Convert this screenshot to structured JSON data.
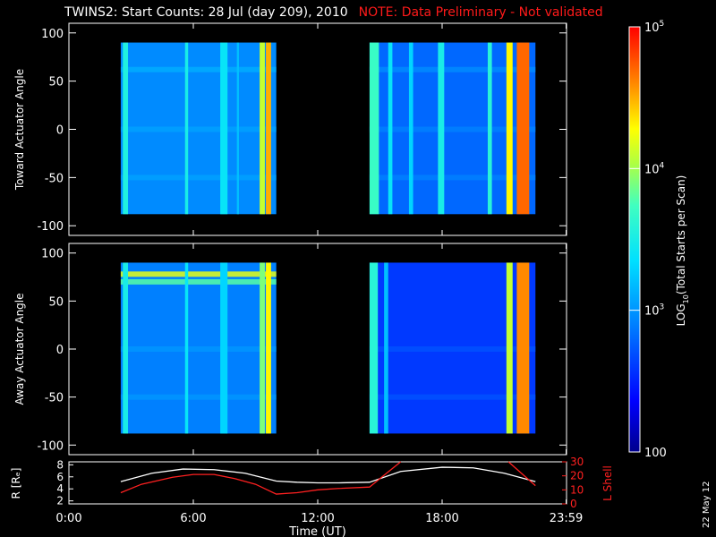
{
  "title": {
    "main": "TWINS2: Start Counts: 28 Jul (day 209), 2010",
    "note": "NOTE: Data Preliminary - Not validated"
  },
  "side_label": "22 May 12",
  "colors": {
    "background": "#000000",
    "axes": "#ffffff",
    "note": "#ff1a1a",
    "r_line": "#ffffff",
    "lshell_line": "#ff2020"
  },
  "chart_data": [
    {
      "type": "heatmap",
      "panel": "toward",
      "ylabel": "Toward Actuator Angle",
      "ylim": [
        -110,
        110
      ],
      "yticks": [
        100,
        50,
        0,
        -50,
        -100
      ],
      "xlim_hours": [
        0,
        24
      ],
      "data_extent": {
        "y": [
          -88,
          90
        ]
      },
      "segments": [
        {
          "x_start_hours": 2.5,
          "x_end_hours": 10.0,
          "background_level": 2.95,
          "stripes": [
            {
              "x_hours": 2.6,
              "width": 0.25,
              "level": 3.55
            },
            {
              "x_hours": 5.6,
              "width": 0.15,
              "level": 3.5
            },
            {
              "x_hours": 7.3,
              "width": 0.35,
              "level": 3.4
            },
            {
              "x_hours": 8.1,
              "width": 0.1,
              "level": 3.2
            },
            {
              "x_hours": 9.2,
              "width": 0.25,
              "level": 4.1
            },
            {
              "x_hours": 9.5,
              "width": 0.25,
              "level": 4.5
            }
          ]
        },
        {
          "x_start_hours": 14.5,
          "x_end_hours": 22.5,
          "background_level": 2.8,
          "stripes": [
            {
              "x_hours": 14.5,
              "width": 0.45,
              "level": 3.7
            },
            {
              "x_hours": 15.4,
              "width": 0.2,
              "level": 3.4
            },
            {
              "x_hours": 16.4,
              "width": 0.2,
              "level": 3.3
            },
            {
              "x_hours": 17.8,
              "width": 0.3,
              "level": 3.5
            },
            {
              "x_hours": 20.2,
              "width": 0.2,
              "level": 3.6
            },
            {
              "x_hours": 21.1,
              "width": 0.3,
              "level": 4.3
            },
            {
              "x_hours": 21.6,
              "width": 0.6,
              "level": 4.7
            }
          ]
        }
      ],
      "bands": [
        {
          "y": 62,
          "level_delta": 0.15
        },
        {
          "y": 0,
          "level_delta": 0.1
        },
        {
          "y": -50,
          "level_delta": 0.1
        }
      ]
    },
    {
      "type": "heatmap",
      "panel": "away",
      "ylabel": "Away Actuator Angle",
      "ylim": [
        -110,
        110
      ],
      "yticks": [
        100,
        50,
        0,
        -50,
        -100
      ],
      "xlim_hours": [
        0,
        24
      ],
      "data_extent": {
        "y": [
          -88,
          90
        ]
      },
      "segments": [
        {
          "x_start_hours": 2.5,
          "x_end_hours": 10.0,
          "background_level": 2.9,
          "stripes": [
            {
              "x_hours": 2.6,
              "width": 0.25,
              "level": 3.5
            },
            {
              "x_hours": 5.6,
              "width": 0.15,
              "level": 3.4
            },
            {
              "x_hours": 7.3,
              "width": 0.35,
              "level": 3.3
            },
            {
              "x_hours": 9.2,
              "width": 0.25,
              "level": 3.9
            },
            {
              "x_hours": 9.5,
              "width": 0.25,
              "level": 4.3
            }
          ]
        },
        {
          "x_start_hours": 14.5,
          "x_end_hours": 22.5,
          "background_level": 2.6,
          "stripes": [
            {
              "x_hours": 14.5,
              "width": 0.4,
              "level": 3.6
            },
            {
              "x_hours": 15.2,
              "width": 0.2,
              "level": 3.2
            },
            {
              "x_hours": 21.1,
              "width": 0.3,
              "level": 4.1
            },
            {
              "x_hours": 21.6,
              "width": 0.6,
              "level": 4.6
            }
          ]
        }
      ],
      "bands": [
        {
          "y": 78,
          "level_delta": 1.3,
          "x_range_hours": [
            2.5,
            10.0
          ]
        },
        {
          "y": 70,
          "level_delta": 0.9,
          "x_range_hours": [
            2.5,
            10.0
          ]
        },
        {
          "y": 0,
          "level_delta": 0.1
        },
        {
          "y": -50,
          "level_delta": 0.1
        }
      ]
    },
    {
      "type": "line",
      "panel": "orbit",
      "ylabel": "R [Rₑ]",
      "ylabel_right": "L Shell",
      "xlabel": "Time (UT)",
      "xtick_labels": [
        "0:00",
        "6:00",
        "12:00",
        "18:00",
        "23:59"
      ],
      "xtick_hours": [
        0,
        6,
        12,
        18,
        23.98
      ],
      "ylim_left": [
        1.5,
        8.5
      ],
      "yticks_left": [
        2,
        4,
        6,
        8
      ],
      "ylim_right": [
        0,
        30
      ],
      "yticks_right": [
        0,
        10,
        20,
        30
      ],
      "series": [
        {
          "axis": "left",
          "color": "#ffffff",
          "x": [
            2.5,
            4,
            5.5,
            7,
            8.5,
            10,
            11,
            12,
            13,
            14.5,
            16,
            18,
            19.5,
            21,
            22.5
          ],
          "y": [
            5.2,
            6.6,
            7.3,
            7.2,
            6.6,
            5.3,
            5.1,
            5.0,
            5.0,
            5.1,
            6.9,
            7.6,
            7.5,
            6.6,
            5.2
          ]
        },
        {
          "axis": "right",
          "color": "#ff2020",
          "x": [
            2.5,
            3.5,
            5,
            6,
            7,
            8,
            9,
            10,
            11,
            12,
            13,
            14.5,
            15,
            15.5,
            16
          ],
          "y": [
            8,
            14,
            19,
            21,
            21,
            18,
            14,
            7,
            8,
            10,
            11,
            12,
            18,
            24,
            30
          ]
        },
        {
          "axis": "right",
          "color": "#ff2020",
          "x": [
            21.2,
            22.5
          ],
          "y": [
            30,
            13
          ]
        }
      ]
    },
    {
      "type": "colorbar",
      "label_base": "LOG",
      "label_sub": "10",
      "label_rest": "(Total Starts per Scan)",
      "scale": "log",
      "range": [
        100,
        100000
      ],
      "tick_labels": [
        {
          "value": 100000,
          "base": "10",
          "exp": "5"
        },
        {
          "value": 10000,
          "base": "10",
          "exp": "4"
        },
        {
          "value": 1000,
          "base": "10",
          "exp": "3"
        },
        {
          "value": 100,
          "base": "100",
          "exp": ""
        }
      ]
    }
  ]
}
